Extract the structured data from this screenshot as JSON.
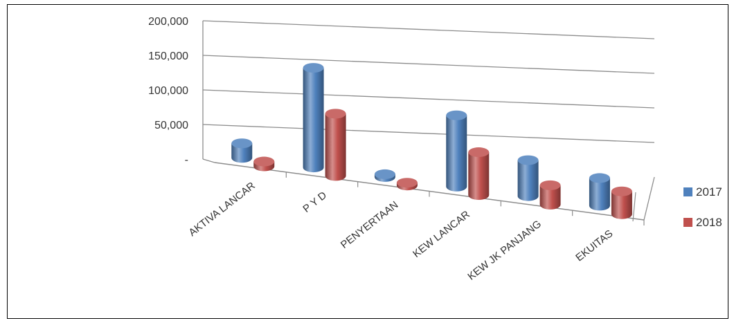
{
  "chart_data": {
    "type": "bar",
    "title": "",
    "xlabel": "",
    "ylabel": "",
    "categories": [
      "AKTIVA LANCAR",
      "P Y D",
      "PENYERTAAN",
      "KEW LANCAR",
      "KEW JK PANJANG",
      "EKUITAS"
    ],
    "series": [
      {
        "name": "2017",
        "color": "#4F81BD",
        "values": [
          21000,
          144000,
          2000,
          103000,
          52000,
          40000
        ]
      },
      {
        "name": "2018",
        "color": "#C0504D",
        "values": [
          7000,
          90000,
          1000,
          62000,
          28000,
          33000
        ]
      }
    ],
    "ylim": [
      0,
      200000
    ],
    "yticks": [
      {
        "value": 0,
        "label": "-"
      },
      {
        "value": 50000,
        "label": "50,000"
      },
      {
        "value": 100000,
        "label": "100,000"
      },
      {
        "value": 150000,
        "label": "150,000"
      },
      {
        "value": 200000,
        "label": "200,000"
      }
    ],
    "grid": true,
    "legend_position": "right",
    "style": "3d-cylinder"
  }
}
